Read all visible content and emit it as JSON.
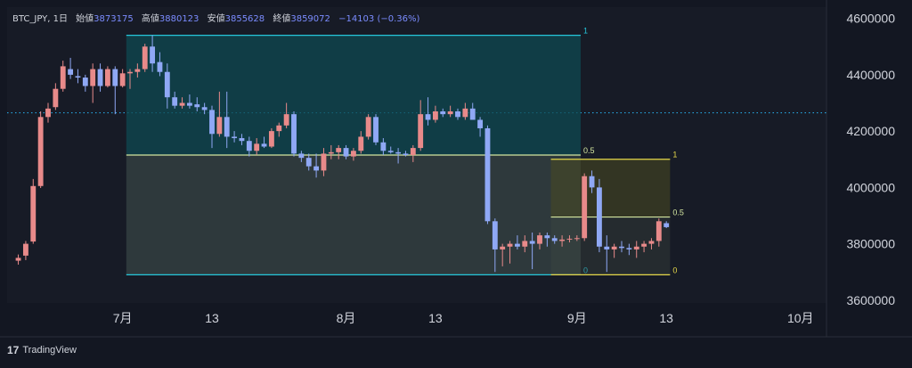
{
  "legend": {
    "symbol": "BTC_JPY, 1日",
    "open_label": "始値",
    "open": "3873175",
    "high_label": "高値",
    "high": "3880123",
    "low_label": "安値",
    "low": "3855628",
    "close_label": "終値",
    "close": "3859072",
    "change": "−14103 (−0.36%)"
  },
  "brand": {
    "logo": "17",
    "name": "TradingView"
  },
  "colors": {
    "background": "#131722",
    "up": "#e88a8a",
    "down": "#8fa8f5",
    "fib_large_border": "#26c6da",
    "fib_large_fill": "#0f4a52",
    "fib_small_border": "#e6d84a",
    "fib_mid_line": "#d4e6a0",
    "dotted_line": "#29b6f6",
    "axis_text": "#d1d4dc"
  },
  "chart_data": {
    "type": "candlestick",
    "y_axis": {
      "ticks": [
        3600000,
        3800000,
        4000000,
        4200000,
        4400000,
        4600000
      ],
      "tick_labels": [
        "3600000",
        "3800000",
        "4000000",
        "4200000",
        "4400000",
        "4600000"
      ],
      "ylim": [
        3590000,
        4640000
      ],
      "position": "right"
    },
    "x_axis": {
      "ticks": [
        {
          "label": "7月",
          "index": 15
        },
        {
          "label": "13",
          "index": 27
        },
        {
          "label": "8月",
          "index": 45
        },
        {
          "label": "13",
          "index": 57
        },
        {
          "label": "9月",
          "index": 76
        },
        {
          "label": "13",
          "index": 88
        },
        {
          "label": "10月",
          "index": 106
        }
      ],
      "slot_count": 110
    },
    "candles": [
      [
        3740000,
        3762000,
        3726000,
        3750000
      ],
      [
        3758000,
        3810000,
        3742000,
        3800000
      ],
      [
        3808000,
        4030000,
        3800000,
        4005000
      ],
      [
        4005000,
        4270000,
        3998000,
        4250000
      ],
      [
        4250000,
        4300000,
        4230000,
        4280000
      ],
      [
        4285000,
        4370000,
        4275000,
        4350000
      ],
      [
        4350000,
        4450000,
        4340000,
        4430000
      ],
      [
        4420000,
        4460000,
        4385000,
        4400000
      ],
      [
        4395000,
        4420000,
        4370000,
        4390000
      ],
      [
        4390000,
        4400000,
        4340000,
        4360000
      ],
      [
        4360000,
        4440000,
        4300000,
        4420000
      ],
      [
        4420000,
        4440000,
        4340000,
        4360000
      ],
      [
        4360000,
        4430000,
        4355000,
        4420000
      ],
      [
        4420000,
        4430000,
        4260000,
        4360000
      ],
      [
        4360000,
        4420000,
        4355000,
        4405000
      ],
      [
        4405000,
        4420000,
        4350000,
        4410000
      ],
      [
        4410000,
        4440000,
        4390000,
        4420000
      ],
      [
        4420000,
        4510000,
        4410000,
        4500000
      ],
      [
        4500000,
        4540000,
        4410000,
        4440000
      ],
      [
        4445000,
        4480000,
        4395000,
        4410000
      ],
      [
        4410000,
        4440000,
        4280000,
        4320000
      ],
      [
        4320000,
        4340000,
        4280000,
        4290000
      ],
      [
        4290000,
        4320000,
        4280000,
        4300000
      ],
      [
        4300000,
        4330000,
        4280000,
        4290000
      ],
      [
        4295000,
        4320000,
        4270000,
        4285000
      ],
      [
        4285000,
        4300000,
        4260000,
        4275000
      ],
      [
        4275000,
        4290000,
        4140000,
        4190000
      ],
      [
        4190000,
        4340000,
        4180000,
        4250000
      ],
      [
        4250000,
        4340000,
        4140000,
        4180000
      ],
      [
        4180000,
        4200000,
        4160000,
        4175000
      ],
      [
        4175000,
        4190000,
        4150000,
        4165000
      ],
      [
        4165000,
        4180000,
        4110000,
        4130000
      ],
      [
        4130000,
        4175000,
        4115000,
        4155000
      ],
      [
        4155000,
        4180000,
        4140000,
        4145000
      ],
      [
        4145000,
        4210000,
        4140000,
        4200000
      ],
      [
        4200000,
        4230000,
        4180000,
        4220000
      ],
      [
        4220000,
        4300000,
        4210000,
        4260000
      ],
      [
        4260000,
        4270000,
        4110000,
        4120000
      ],
      [
        4120000,
        4130000,
        4090000,
        4105000
      ],
      [
        4105000,
        4120000,
        4060000,
        4075000
      ],
      [
        4075000,
        4120000,
        4035000,
        4060000
      ],
      [
        4060000,
        4140000,
        4040000,
        4120000
      ],
      [
        4120000,
        4150000,
        4100000,
        4125000
      ],
      [
        4125000,
        4150000,
        4100000,
        4140000
      ],
      [
        4140000,
        4150000,
        4100000,
        4110000
      ],
      [
        4110000,
        4140000,
        4095000,
        4130000
      ],
      [
        4130000,
        4200000,
        4120000,
        4180000
      ],
      [
        4180000,
        4260000,
        4170000,
        4250000
      ],
      [
        4250000,
        4260000,
        4150000,
        4160000
      ],
      [
        4160000,
        4175000,
        4115000,
        4130000
      ],
      [
        4130000,
        4145000,
        4120000,
        4125000
      ],
      [
        4125000,
        4140000,
        4085000,
        4120000
      ],
      [
        4120000,
        4130000,
        4110000,
        4115000
      ],
      [
        4115000,
        4150000,
        4090000,
        4140000
      ],
      [
        4140000,
        4310000,
        4130000,
        4260000
      ],
      [
        4260000,
        4320000,
        4220000,
        4240000
      ],
      [
        4240000,
        4290000,
        4230000,
        4270000
      ],
      [
        4270000,
        4280000,
        4250000,
        4260000
      ],
      [
        4260000,
        4290000,
        4250000,
        4270000
      ],
      [
        4270000,
        4280000,
        4240000,
        4250000
      ],
      [
        4250000,
        4300000,
        4240000,
        4280000
      ],
      [
        4280000,
        4300000,
        4250000,
        4240000
      ],
      [
        4240000,
        4250000,
        4180000,
        4210000
      ],
      [
        4210000,
        4220000,
        3870000,
        3880000
      ],
      [
        3880000,
        3890000,
        3700000,
        3780000
      ],
      [
        3780000,
        3800000,
        3720000,
        3790000
      ],
      [
        3790000,
        3810000,
        3730000,
        3800000
      ],
      [
        3800000,
        3830000,
        3780000,
        3790000
      ],
      [
        3790000,
        3830000,
        3770000,
        3810000
      ],
      [
        3810000,
        3840000,
        3710000,
        3800000
      ],
      [
        3800000,
        3840000,
        3780000,
        3830000
      ],
      [
        3830000,
        3840000,
        3790000,
        3820000
      ],
      [
        3820000,
        3830000,
        3800000,
        3810000
      ],
      [
        3810000,
        3830000,
        3790000,
        3815000
      ],
      [
        3815000,
        3830000,
        3805000,
        3818000
      ],
      [
        3818000,
        3830000,
        3810000,
        3820000
      ],
      [
        3820000,
        4050000,
        3810000,
        4040000
      ],
      [
        4040000,
        4060000,
        3980000,
        4000000
      ],
      [
        4000000,
        4030000,
        3770000,
        3790000
      ],
      [
        3790000,
        3830000,
        3700000,
        3780000
      ],
      [
        3780000,
        3800000,
        3750000,
        3790000
      ],
      [
        3790000,
        3810000,
        3770000,
        3785000
      ],
      [
        3785000,
        3800000,
        3760000,
        3780000
      ],
      [
        3780000,
        3810000,
        3750000,
        3790000
      ],
      [
        3790000,
        3810000,
        3770000,
        3800000
      ],
      [
        3800000,
        3820000,
        3780000,
        3810000
      ],
      [
        3810000,
        3890000,
        3790000,
        3880000
      ],
      [
        3873175,
        3880123,
        3855628,
        3859072
      ]
    ],
    "candle_slots": [
      1,
      2,
      3,
      4,
      5,
      6,
      7,
      8,
      9,
      10,
      11,
      12,
      13,
      14,
      15,
      16,
      17,
      18,
      19,
      20,
      21,
      22,
      23,
      24,
      25,
      26,
      27,
      28,
      29,
      30,
      31,
      32,
      33,
      34,
      35,
      36,
      37,
      38,
      39,
      40,
      41,
      42,
      43,
      44,
      45,
      46,
      47,
      48,
      49,
      50,
      51,
      52,
      53,
      54,
      55,
      56,
      57,
      58,
      59,
      60,
      61,
      62,
      63,
      64,
      65,
      66,
      67,
      68,
      69,
      70,
      71,
      72,
      73,
      74,
      75,
      76,
      77,
      78,
      79,
      80,
      81,
      82,
      83,
      84,
      85,
      86,
      87,
      88
    ],
    "horizontal_line_price": 4265000,
    "fib_large": {
      "start_slot": 16,
      "end_slot": 76,
      "high": 4540000,
      "low": 3690000,
      "mid": 4115000,
      "labels": {
        "top": "1",
        "mid": "0.5",
        "bottom": "0"
      }
    },
    "fib_small": {
      "start_slot": 73,
      "end_slot": 88,
      "high": 4100000,
      "low": 3690000,
      "mid": 3895000,
      "labels": {
        "top": "1",
        "mid": "0.5",
        "bottom": "0"
      }
    }
  }
}
